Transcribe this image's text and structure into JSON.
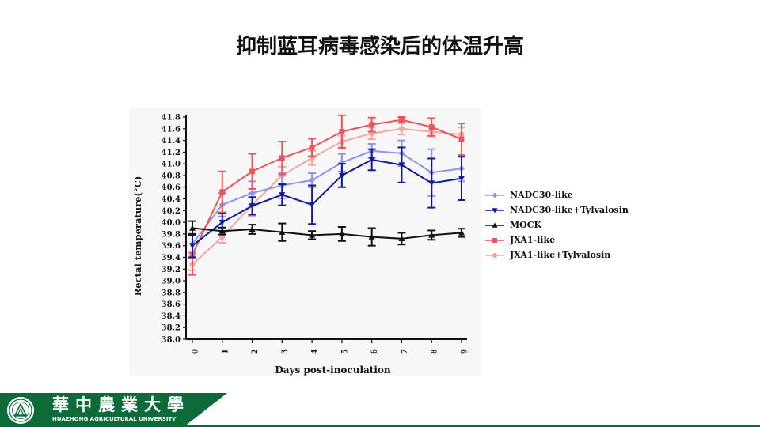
{
  "slide": {
    "title": "抑制蓝耳病毒感染后的体温升高"
  },
  "institution": {
    "name_cn": "華中農業大學",
    "name_en": "HUAZHONG AGRICULTURAL UNIVERSITY",
    "logo_icon": "university-seal-icon"
  },
  "chart_data": {
    "type": "line",
    "title": "",
    "xlabel": "Days post-inoculation",
    "ylabel": "Rectal temperature(°C)",
    "x": [
      0,
      1,
      2,
      3,
      4,
      5,
      6,
      7,
      8,
      9
    ],
    "xticks": [
      "0",
      "1",
      "2",
      "3",
      "4",
      "5",
      "6",
      "7",
      "8",
      "9"
    ],
    "ylim": [
      38.0,
      41.8
    ],
    "yticks": [
      "38.0",
      "38.2",
      "38.4",
      "38.6",
      "38.8",
      "39.0",
      "39.2",
      "39.4",
      "39.6",
      "39.8",
      "40.0",
      "40.2",
      "40.4",
      "40.6",
      "40.8",
      "41.0",
      "41.2",
      "41.4",
      "41.6",
      "41.8"
    ],
    "grid": false,
    "error_bars": true,
    "legend_position": "right",
    "series": [
      {
        "name": "NADC30-like",
        "color": "#8f95e6",
        "marker": "diamond",
        "values": [
          39.63,
          40.3,
          40.5,
          40.63,
          40.72,
          41.02,
          41.22,
          41.18,
          40.85,
          40.92
        ],
        "errors": [
          0.15,
          0.2,
          0.2,
          0.22,
          0.12,
          0.15,
          0.12,
          0.22,
          0.4,
          0.22
        ]
      },
      {
        "name": "NADC30-like+Tylvalosin",
        "color": "#0f1a96",
        "marker": "triangle-down",
        "values": [
          39.6,
          40.0,
          40.28,
          40.47,
          40.3,
          40.8,
          41.07,
          40.98,
          40.67,
          40.75
        ],
        "errors": [
          0.2,
          0.15,
          0.15,
          0.18,
          0.33,
          0.2,
          0.18,
          0.3,
          0.42,
          0.37
        ]
      },
      {
        "name": "MOCK",
        "color": "#111111",
        "marker": "triangle-up",
        "values": [
          39.9,
          39.85,
          39.88,
          39.83,
          39.78,
          39.8,
          39.75,
          39.72,
          39.78,
          39.82
        ],
        "errors": [
          0.12,
          0.06,
          0.08,
          0.15,
          0.07,
          0.12,
          0.15,
          0.1,
          0.08,
          0.07
        ]
      },
      {
        "name": "JXA1-like",
        "color": "#e8555a",
        "marker": "square",
        "values": [
          39.45,
          40.52,
          40.87,
          41.1,
          41.28,
          41.55,
          41.67,
          41.75,
          41.63,
          41.42
        ],
        "errors": [
          0.35,
          0.35,
          0.3,
          0.28,
          0.15,
          0.28,
          0.12,
          0.05,
          0.15,
          0.27
        ]
      },
      {
        "name": "JXA1-like+Tylvalosin",
        "color": "#f2a5a7",
        "marker": "circle",
        "values": [
          39.28,
          39.75,
          40.3,
          40.8,
          41.1,
          41.38,
          41.52,
          41.6,
          41.55,
          41.5
        ],
        "errors": [
          0.1,
          0.1,
          0.2,
          0.15,
          0.12,
          0.1,
          0.1,
          0.1,
          0.08,
          0.12
        ]
      }
    ]
  }
}
